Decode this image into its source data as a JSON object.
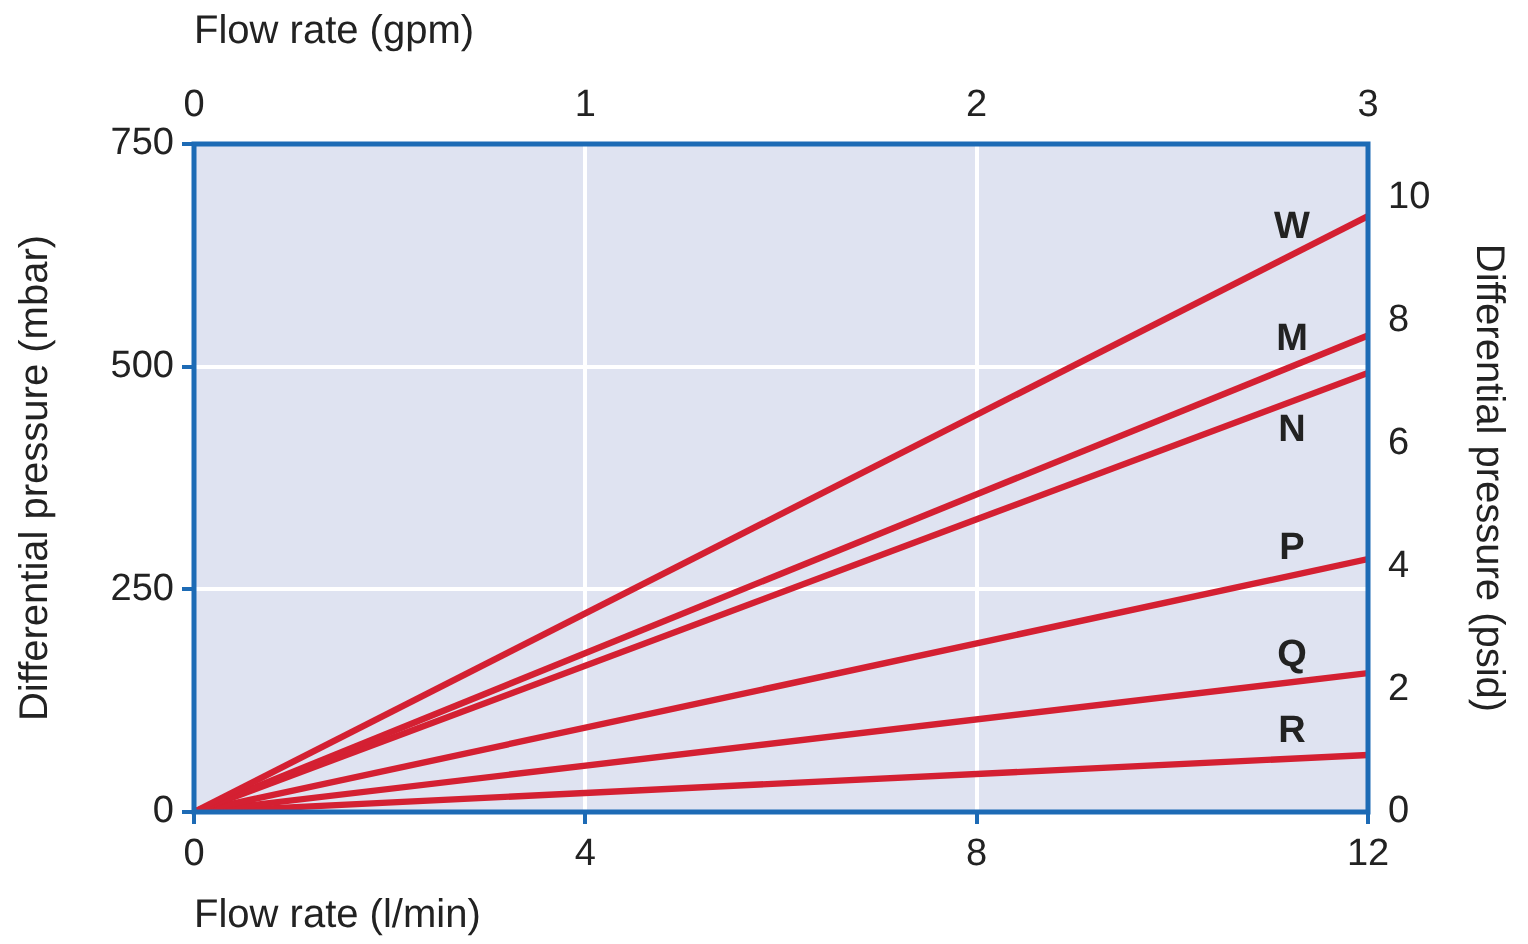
{
  "chart_data": {
    "type": "line",
    "xlabel": "Flow rate (l/min)",
    "x2label": "Flow rate (gpm)",
    "ylabel": "Differential pressure (mbar)",
    "y2label": "Differential pressure (psid)",
    "x": [
      0,
      12
    ],
    "xlim": [
      0,
      12
    ],
    "xticks": [
      0,
      4,
      8,
      12
    ],
    "x2lim": [
      0,
      3
    ],
    "x2ticks": [
      0,
      1,
      2,
      3
    ],
    "ylim": [
      0,
      750
    ],
    "yticks": [
      0,
      250,
      500,
      750
    ],
    "y2lim": [
      0,
      10.88
    ],
    "y2ticks": [
      0,
      2,
      4,
      6,
      8,
      10
    ],
    "grid": true,
    "legend": false,
    "marker": "none",
    "line_style": "solid",
    "series": [
      {
        "name": "W",
        "color": "#d42032",
        "values": [
          0,
          669
        ]
      },
      {
        "name": "M",
        "color": "#d42032",
        "values": [
          0,
          535
        ]
      },
      {
        "name": "N",
        "color": "#d42032",
        "values": [
          0,
          493
        ]
      },
      {
        "name": "P",
        "color": "#d42032",
        "values": [
          0,
          284
        ]
      },
      {
        "name": "Q",
        "color": "#d42032",
        "values": [
          0,
          156
        ]
      },
      {
        "name": "R",
        "color": "#d42032",
        "values": [
          0,
          64
        ]
      }
    ]
  }
}
